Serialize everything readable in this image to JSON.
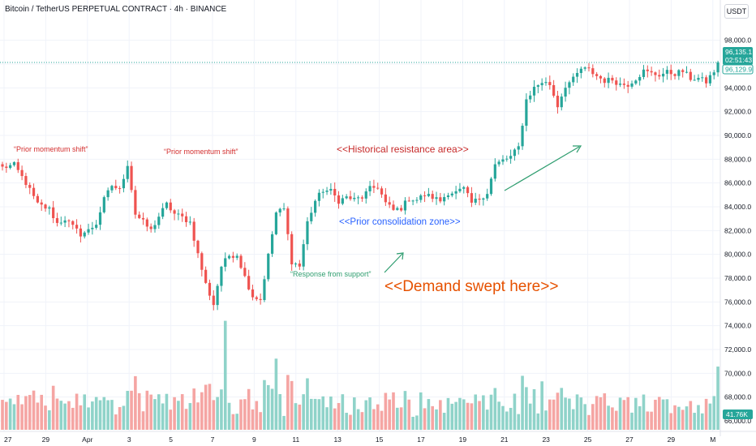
{
  "header": {
    "symbol_title": "Bitcoin / TetherUS PERPETUAL CONTRACT · 4h · BINANCE",
    "currency_button": "USDT"
  },
  "price_axis": {
    "last_price": "96,135.1",
    "countdown": "02:51:43",
    "second_price": "96,129.9",
    "volume_label": "41.76K"
  },
  "annotations": {
    "prior_momentum_1": "“Prior momentum shift”",
    "prior_momentum_2": "“Prior momentum shift”",
    "historical_resistance": "<<Historical resistance area>>",
    "prior_consolidation": "<<Prior consolidation zone>>",
    "response_support": "“Response from support”",
    "demand_swept": "<<Demand swept here>>"
  },
  "colors": {
    "up": "#26a69a",
    "down": "#ef5350",
    "up_volume": "#8fd3c9",
    "down_volume": "#f5a5a3",
    "annotation_red": "#d32f2f",
    "annotation_blue": "#2962ff",
    "annotation_green": "#2e9d6f",
    "annotation_orange": "#e65100",
    "last_price_bg": "#26a69a"
  },
  "chart_data": {
    "type": "candlestick",
    "ylim": [
      66000,
      99000
    ],
    "y_ticks": [
      "98,000.0",
      "96,000.0",
      "94,000.0",
      "92,000.0",
      "90,000.0",
      "88,000.0",
      "86,000.0",
      "84,000.0",
      "82,000.0",
      "80,000.0",
      "78,000.0",
      "76,000.0",
      "74,000.0",
      "72,000.0",
      "70,000.0",
      "68,000.0",
      "66,000.0"
    ],
    "x_ticks": [
      "27",
      "29",
      "Apr",
      "3",
      "5",
      "7",
      "9",
      "11",
      "13",
      "15",
      "17",
      "19",
      "21",
      "23",
      "25",
      "27",
      "29",
      "M"
    ],
    "last_price": 96135.1,
    "waypoints": [
      [
        0,
        87300
      ],
      [
        3,
        87500
      ],
      [
        6,
        86000
      ],
      [
        9,
        84200
      ],
      [
        12,
        83800
      ],
      [
        14,
        82600
      ],
      [
        16,
        83000
      ],
      [
        18,
        82300
      ],
      [
        20,
        81700
      ],
      [
        22,
        82000
      ],
      [
        24,
        82600
      ],
      [
        26,
        84600
      ],
      [
        28,
        85800
      ],
      [
        30,
        85400
      ],
      [
        32,
        87600
      ],
      [
        34,
        83400
      ],
      [
        36,
        82700
      ],
      [
        38,
        82000
      ],
      [
        40,
        83200
      ],
      [
        42,
        84200
      ],
      [
        44,
        83400
      ],
      [
        46,
        83100
      ],
      [
        48,
        82700
      ],
      [
        50,
        80000
      ],
      [
        52,
        77500
      ],
      [
        54,
        75800
      ],
      [
        56,
        79000
      ],
      [
        58,
        79900
      ],
      [
        60,
        80000
      ],
      [
        62,
        78100
      ],
      [
        64,
        76500
      ],
      [
        66,
        76200
      ],
      [
        68,
        79900
      ],
      [
        70,
        83500
      ],
      [
        72,
        83800
      ],
      [
        74,
        79400
      ],
      [
        76,
        79000
      ],
      [
        78,
        82700
      ],
      [
        80,
        84500
      ],
      [
        82,
        85400
      ],
      [
        84,
        85300
      ],
      [
        86,
        84500
      ],
      [
        88,
        84800
      ],
      [
        90,
        84600
      ],
      [
        92,
        84800
      ],
      [
        94,
        85500
      ],
      [
        96,
        85700
      ],
      [
        98,
        84300
      ],
      [
        100,
        83700
      ],
      [
        102,
        83900
      ],
      [
        104,
        84700
      ],
      [
        106,
        84600
      ],
      [
        108,
        85000
      ],
      [
        110,
        84800
      ],
      [
        112,
        84500
      ],
      [
        114,
        85200
      ],
      [
        116,
        85200
      ],
      [
        118,
        85500
      ],
      [
        120,
        84300
      ],
      [
        122,
        84700
      ],
      [
        124,
        85200
      ],
      [
        126,
        87500
      ],
      [
        128,
        87900
      ],
      [
        130,
        88200
      ],
      [
        132,
        89000
      ],
      [
        134,
        93000
      ],
      [
        136,
        94000
      ],
      [
        138,
        94500
      ],
      [
        140,
        94300
      ],
      [
        142,
        92500
      ],
      [
        144,
        94200
      ],
      [
        146,
        94700
      ],
      [
        148,
        95600
      ],
      [
        150,
        95500
      ],
      [
        152,
        95000
      ],
      [
        154,
        94600
      ],
      [
        156,
        94700
      ],
      [
        158,
        94300
      ],
      [
        160,
        94300
      ],
      [
        162,
        94800
      ],
      [
        164,
        95400
      ],
      [
        166,
        95200
      ],
      [
        168,
        95100
      ],
      [
        170,
        95300
      ],
      [
        172,
        95200
      ],
      [
        174,
        95400
      ],
      [
        176,
        94800
      ],
      [
        178,
        94800
      ],
      [
        180,
        94500
      ],
      [
        182,
        95400
      ],
      [
        183,
        96135
      ]
    ],
    "volume_axis_max": 75000,
    "volume_last": 41760
  }
}
